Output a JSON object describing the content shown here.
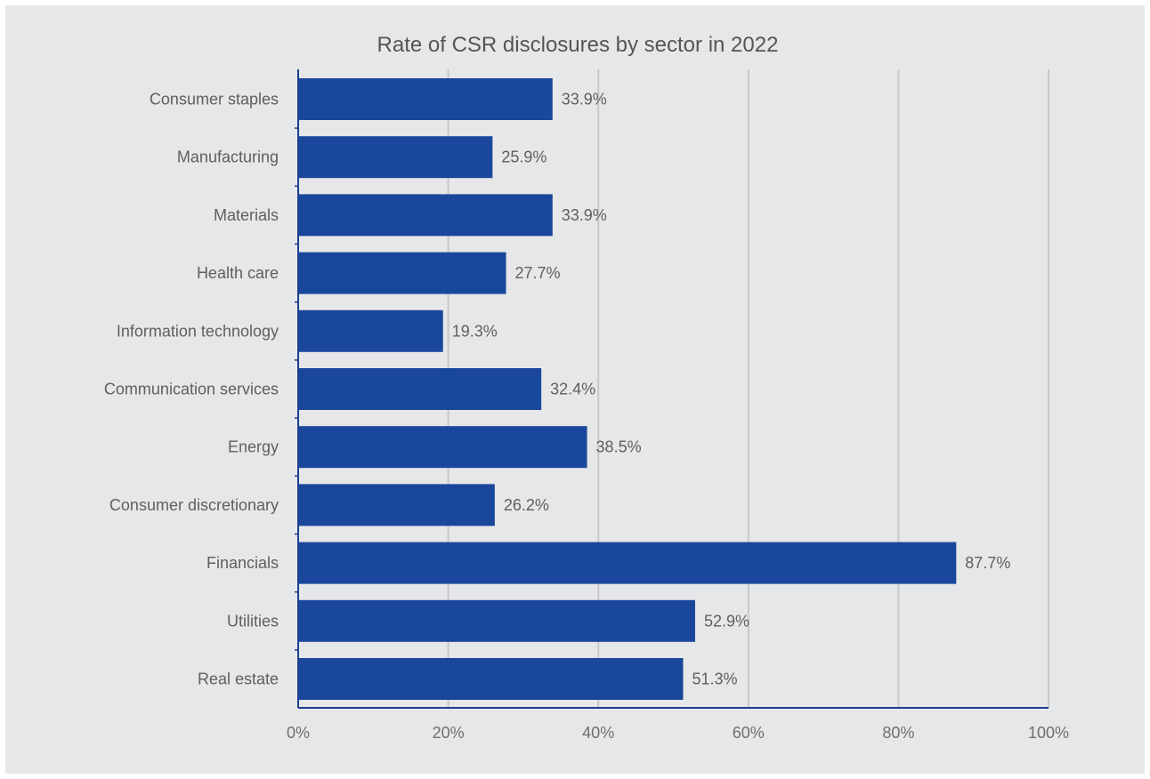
{
  "chart_data": {
    "type": "bar",
    "orientation": "horizontal",
    "title": "Rate of CSR disclosures by sector in 2022",
    "categories": [
      "Consumer staples",
      "Manufacturing",
      "Materials",
      "Health care",
      "Information technology",
      "Communication services",
      "Energy",
      "Consumer discretionary",
      "Financials",
      "Utilities",
      "Real estate"
    ],
    "values": [
      33.9,
      25.9,
      33.9,
      27.7,
      19.3,
      32.4,
      38.5,
      26.2,
      87.7,
      52.9,
      51.3
    ],
    "data_labels": [
      "33.9%",
      "25.9%",
      "33.9%",
      "27.7%",
      "19.3%",
      "32.4%",
      "38.5%",
      "26.2%",
      "87.7%",
      "52.9%",
      "51.3%"
    ],
    "xlim": [
      0,
      100
    ],
    "x_ticks": [
      0,
      20,
      40,
      60,
      80,
      100
    ],
    "x_tick_labels": [
      "0%",
      "20%",
      "40%",
      "60%",
      "80%",
      "100%"
    ],
    "xlabel": "",
    "ylabel": "",
    "grid": true,
    "legend": "none",
    "colors": {
      "bar": "#19479c",
      "axis": "#1e3f8f",
      "grid": "#c8c9cb",
      "background": "#e6e7e8",
      "text": "#5f5f5f"
    }
  }
}
